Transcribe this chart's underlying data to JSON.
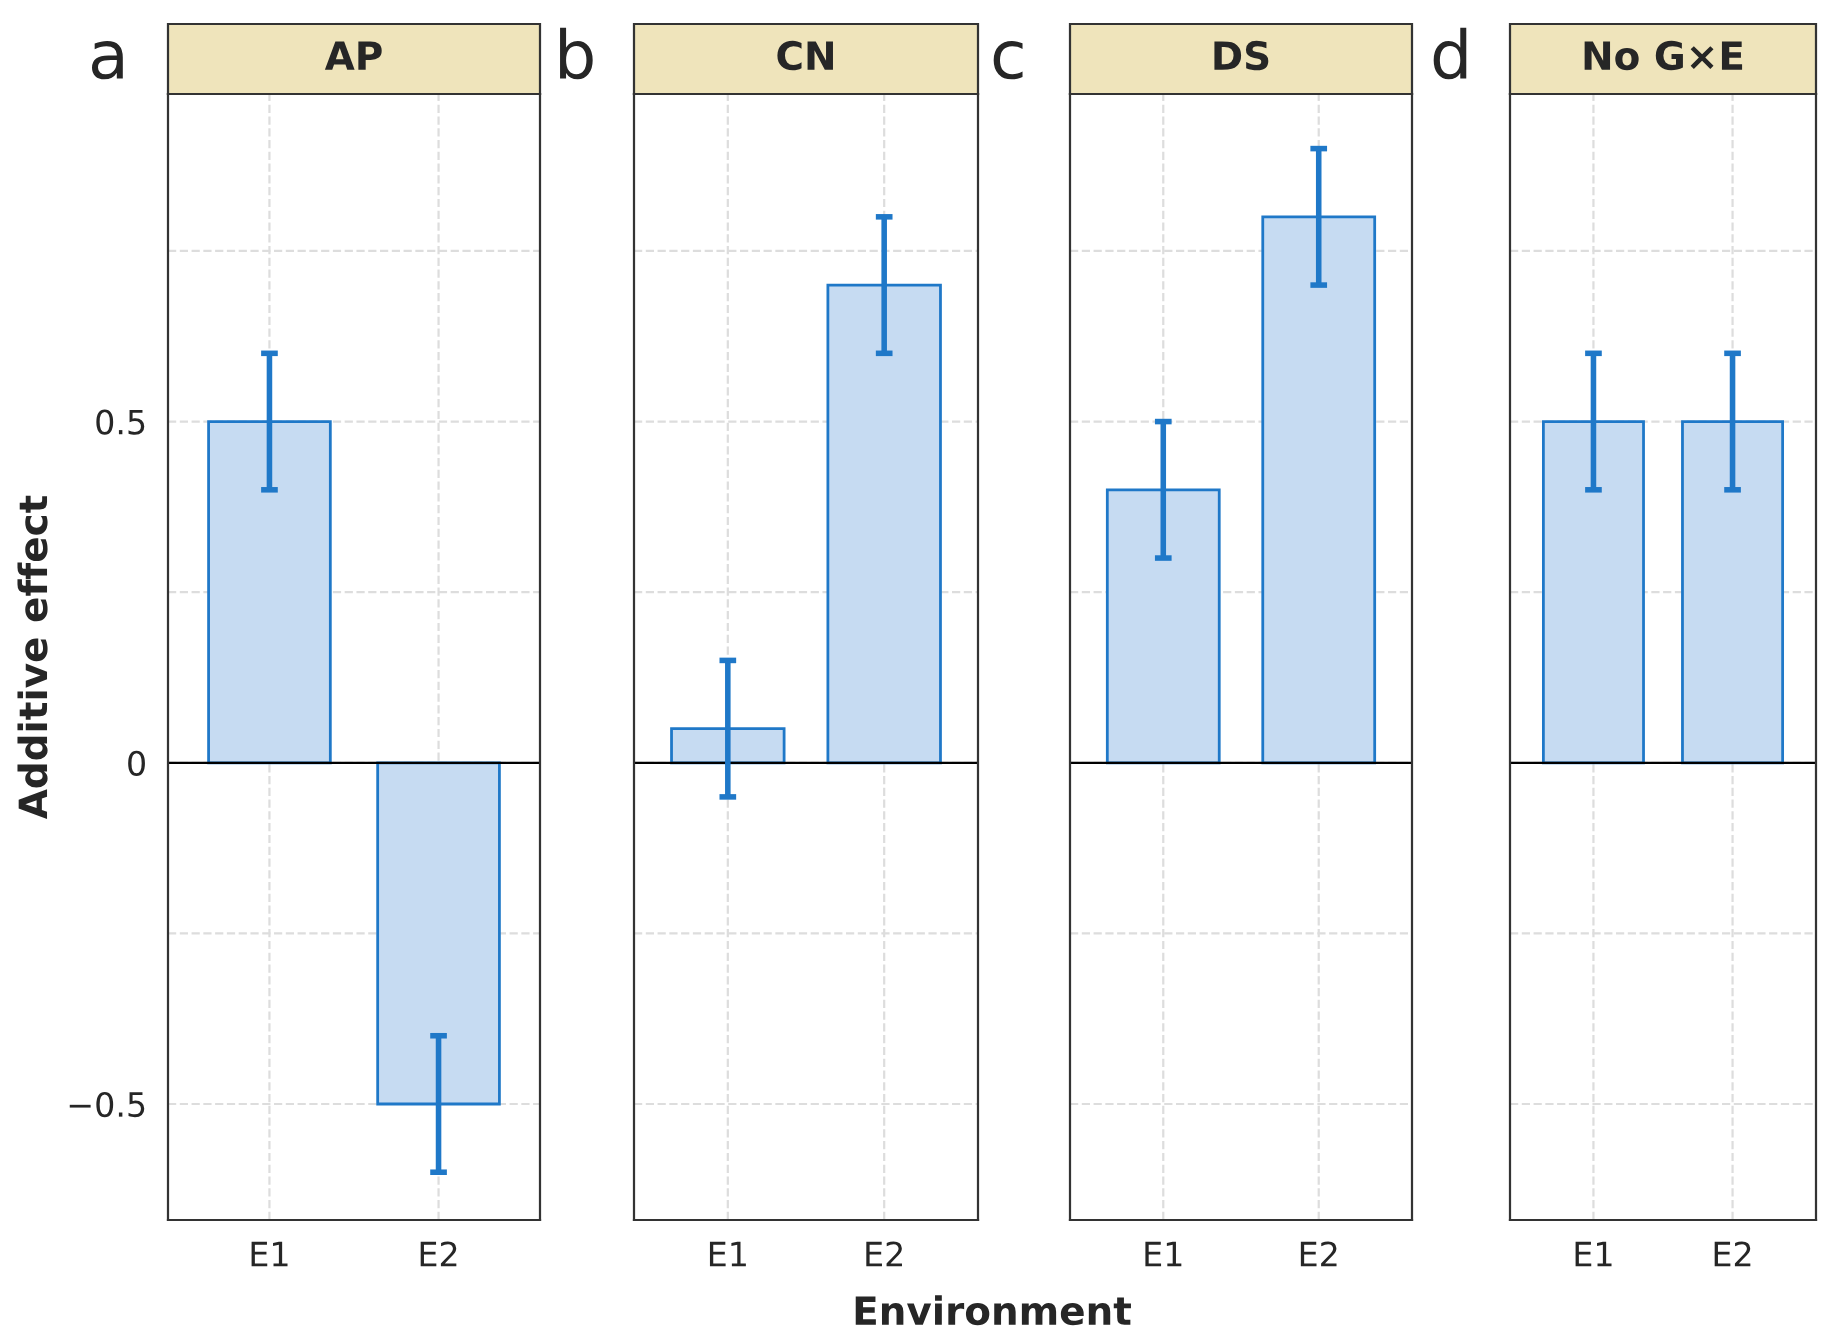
{
  "chart_data": [
    {
      "type": "bar",
      "title": "AP",
      "ylabel": "Additive effect",
      "categories": [
        "E1",
        "E2"
      ],
      "values": [
        0.5,
        -0.5
      ],
      "errors": [
        0.1,
        0.1
      ],
      "color": "#c6dbf2",
      "ylim": [
        -0.67,
        0.98
      ],
      "yticks": [
        {
          "value": -0.5,
          "label": "−0.5"
        },
        {
          "value": -0.25,
          "label": null
        },
        0,
        {
          "value": 0.25,
          "label": null
        },
        0.5,
        {
          "value": 0.75,
          "label": null
        }
      ],
      "grid": true,
      "ref_lines": [
        {
          "axis": "y",
          "value": 0,
          "color": "#000000"
        }
      ],
      "annotations": [
        "a"
      ]
    },
    {
      "type": "bar",
      "title": "CN",
      "xlabel": "Environment",
      "categories": [
        "E1",
        "E2"
      ],
      "values": [
        0.05,
        0.7
      ],
      "errors": [
        0.1,
        0.1
      ],
      "color": "#c6dbf2",
      "ylim": [
        -0.67,
        0.98
      ],
      "yticks": [
        -0.5,
        -0.25,
        0,
        0.25,
        0.5,
        0.75
      ],
      "grid": true,
      "tick_labels": "x",
      "ref_lines": [
        {
          "axis": "y",
          "value": 0,
          "color": "#000000"
        }
      ],
      "annotations": [
        "b"
      ]
    },
    {
      "type": "bar",
      "title": "DS",
      "categories": [
        "E1",
        "E2"
      ],
      "values": [
        0.4,
        0.8
      ],
      "errors": [
        0.1,
        0.1
      ],
      "color": "#c6dbf2",
      "ylim": [
        -0.67,
        0.98
      ],
      "yticks": [
        -0.5,
        -0.25,
        0,
        0.25,
        0.5,
        0.75
      ],
      "grid": true,
      "tick_labels": "x",
      "ref_lines": [
        {
          "axis": "y",
          "value": 0,
          "color": "#000000"
        }
      ],
      "annotations": [
        "c"
      ]
    },
    {
      "type": "bar",
      "title": "No G×E",
      "categories": [
        "E1",
        "E2"
      ],
      "values": [
        0.5,
        0.5
      ],
      "errors": [
        0.1,
        0.1
      ],
      "color": "#c6dbf2",
      "ylim": [
        -0.67,
        0.98
      ],
      "yticks": [
        -0.5,
        -0.25,
        0,
        0.25,
        0.5,
        0.75
      ],
      "grid": true,
      "tick_labels": "x",
      "ref_lines": [
        {
          "axis": "y",
          "value": 0,
          "color": "#000000"
        }
      ],
      "annotations": [
        "d"
      ]
    }
  ]
}
